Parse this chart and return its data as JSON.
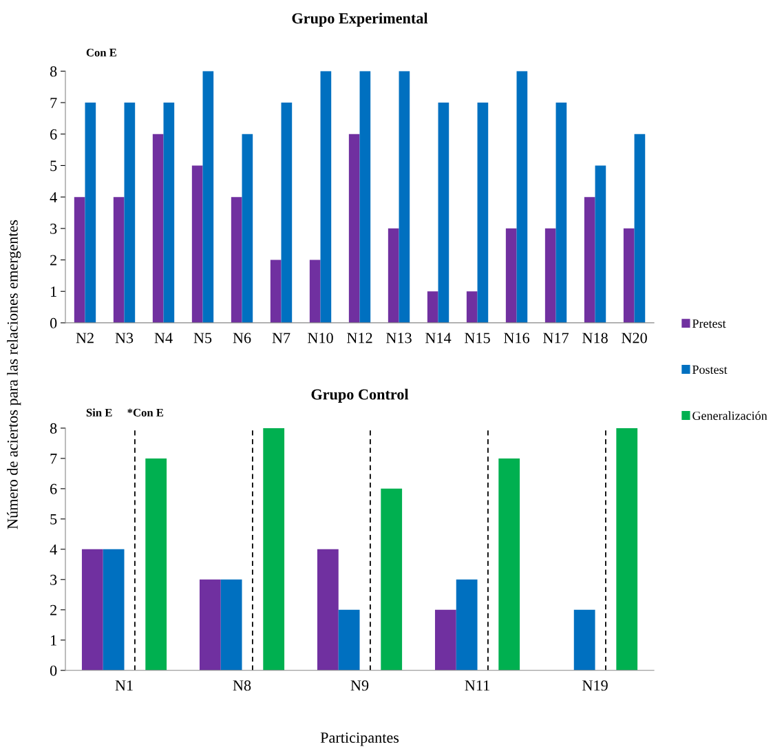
{
  "chart_data": [
    {
      "type": "bar",
      "title": "Grupo Experimental",
      "ylabel": "Número de aciertos para las relaciones emergentes",
      "categories": [
        "N2",
        "N3",
        "N4",
        "N5",
        "N6",
        "N7",
        "N10",
        "N12",
        "N13",
        "N14",
        "N15",
        "N16",
        "N17",
        "N18",
        "N20"
      ],
      "series": [
        {
          "name": "Pretest",
          "color": "#7030a0",
          "values": [
            4,
            4,
            6,
            5,
            4,
            2,
            2,
            6,
            3,
            1,
            1,
            3,
            3,
            4,
            3
          ]
        },
        {
          "name": "Postest",
          "color": "#0070c0",
          "values": [
            7,
            7,
            7,
            8,
            6,
            7,
            8,
            8,
            8,
            7,
            7,
            8,
            7,
            5,
            6
          ]
        }
      ],
      "ylim": [
        0,
        8
      ],
      "yticks": [
        0,
        1,
        2,
        3,
        4,
        5,
        6,
        7,
        8
      ],
      "grid": false,
      "legend": "right",
      "annotations": [
        "Con E"
      ]
    },
    {
      "type": "bar",
      "title": "Grupo Control",
      "xlabel": "Participantes",
      "categories": [
        "N1",
        "N8",
        "N9",
        "N11",
        "N19"
      ],
      "series": [
        {
          "name": "Pretest",
          "color": "#7030a0",
          "values": [
            4,
            3,
            4,
            2,
            0
          ]
        },
        {
          "name": "Postest",
          "color": "#0070c0",
          "values": [
            4,
            3,
            2,
            3,
            2
          ]
        },
        {
          "name": "Generalización",
          "color": "#00b050",
          "values": [
            7,
            8,
            6,
            7,
            8
          ]
        }
      ],
      "ylim": [
        0,
        8
      ],
      "yticks": [
        0,
        1,
        2,
        3,
        4,
        5,
        6,
        7,
        8
      ],
      "grid": false,
      "legend": "right",
      "ref_lines": [
        {
          "axis": "x",
          "value": "N1",
          "line_style": "dashed",
          "color": "#000000"
        },
        {
          "axis": "x",
          "value": "N8",
          "line_style": "dashed",
          "color": "#000000"
        },
        {
          "axis": "x",
          "value": "N9",
          "line_style": "dashed",
          "color": "#000000"
        },
        {
          "axis": "x",
          "value": "N11",
          "line_style": "dashed",
          "color": "#000000"
        },
        {
          "axis": "x",
          "value": "N19",
          "line_style": "dashed",
          "color": "#000000"
        }
      ],
      "annotations": [
        "Sin E",
        "*Con E"
      ]
    }
  ]
}
